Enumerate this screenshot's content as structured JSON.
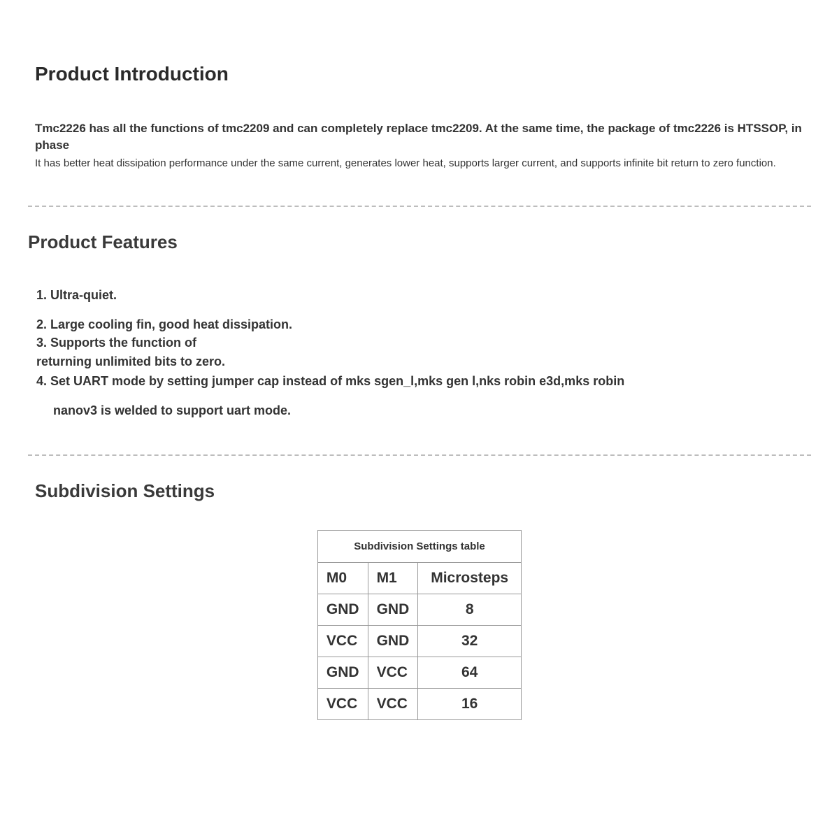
{
  "intro": {
    "heading": "Product Introduction",
    "p1": "Tmc2226 has all the functions of tmc2209 and can completely replace tmc2209. At the same time, the package of tmc2226 is HTSSOP, in phase",
    "p2": "It has better heat dissipation performance under the same current, generates lower heat, supports larger current, and supports infinite bit return to zero function."
  },
  "features": {
    "heading": "Product Features",
    "items": {
      "f1": "1. Ultra-quiet.",
      "f2": "2. Large cooling fin, good heat dissipation.",
      "f3": "3. Supports the function of",
      "f3_sub": "returning unlimited bits to zero.",
      "f4": "4. Set UART mode by setting jumper cap instead of mks sgen_l,mks gen l,nks robin e3d,mks robin",
      "f4_sub": "nanov3 is welded to support uart mode."
    }
  },
  "subdivision": {
    "heading": "Subdivision Settings",
    "caption": "Subdivision Settings table",
    "columns": [
      "M0",
      "M1",
      "Microsteps"
    ],
    "rows": [
      [
        "GND",
        "GND",
        "8"
      ],
      [
        "VCC",
        "GND",
        "32"
      ],
      [
        "GND",
        "VCC",
        "64"
      ],
      [
        "VCC",
        "VCC",
        "16"
      ]
    ],
    "border_color": "#999999",
    "header_fontsize": 21,
    "cell_fontsize": 21,
    "caption_fontsize": 15
  },
  "colors": {
    "text": "#333333",
    "heading": "#2a2a2a",
    "divider": "#bdbdbd",
    "background": "#ffffff"
  },
  "typography": {
    "h1_size": 28,
    "h2_size": 26,
    "body_size": 17,
    "body2_size": 15,
    "feature_size": 18
  }
}
